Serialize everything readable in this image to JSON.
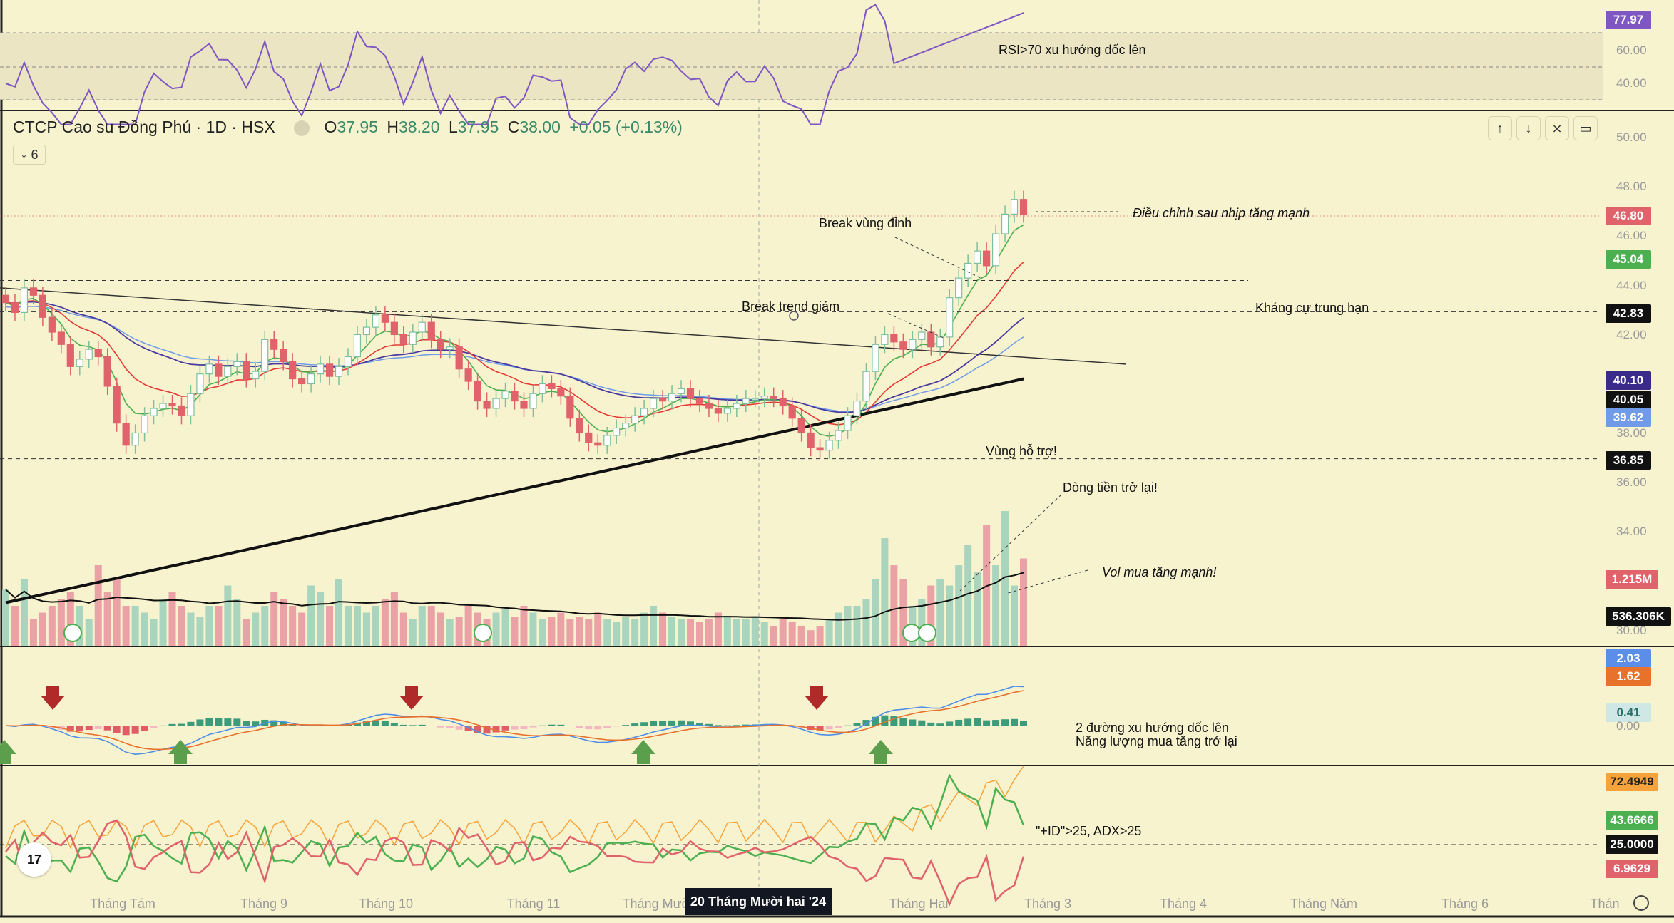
{
  "header": {
    "symbol": "CTCP Cao su Đồng Phú · 1D · HSX",
    "open_label": "O",
    "open": "37.95",
    "high_label": "H",
    "high": "38.20",
    "low_label": "L",
    "low": "37.95",
    "close_label": "C",
    "close": "38.00",
    "change": "+0.05 (+0.13%)",
    "indicator_count": "6"
  },
  "colors": {
    "background": "#f8f3cf",
    "up": "#7dbf9e",
    "down": "#e0626a",
    "rsi": "#7e57c2",
    "ema_fast": "#4caf50",
    "ema_mid": "#e53935",
    "ma_purple": "#4a3aa0",
    "ma_blue": "#6f9be8",
    "ma_black": "#111111"
  },
  "rsi_panel": {
    "levels": [
      "77.97",
      "60.00",
      "40.00"
    ],
    "annotation": "RSI>70 xu hướng dốc lên"
  },
  "price_axis": {
    "ticks": [
      "50.00",
      "48.00",
      "46.00",
      "44.00",
      "42.00",
      "38.00",
      "36.00",
      "34.00",
      "30.00"
    ],
    "tags": [
      {
        "value": "46.80",
        "color": "#e0626a"
      },
      {
        "value": "45.04",
        "color": "#4caf50"
      },
      {
        "value": "42.83",
        "color": "#111111"
      },
      {
        "value": "40.10",
        "color": "#3a2a8a"
      },
      {
        "value": "40.05",
        "color": "#111111"
      },
      {
        "value": "39.62",
        "color": "#6f9be8"
      },
      {
        "value": "36.85",
        "color": "#111111"
      },
      {
        "value": "1.215M",
        "color": "#e0626a"
      },
      {
        "value": "536.306K",
        "color": "#111111"
      }
    ]
  },
  "macd_panel": {
    "tags": [
      "2.03",
      "1.62",
      "0.41"
    ],
    "zero": "0.00",
    "annotation_line1": "2 đường xu hướng dốc lên",
    "annotation_line2": "Năng lượng mua tăng trở lại"
  },
  "dmi_panel": {
    "tags": [
      "72.4949",
      "43.6666",
      "25.0000",
      "6.9629"
    ],
    "annotation": "\"+ID\">25, ADX>25"
  },
  "annotations": {
    "pullback": "Điều chỉnh sau nhịp tăng mạnh",
    "break_peak": "Break vùng đỉnh",
    "break_trend": "Break trend giảm",
    "resistance": "Kháng cự trung hạn",
    "support": "Vùng hỗ trợ!",
    "money_flow": "Dòng tiền trở lại!",
    "vol": "Vol mua tăng mạnh!"
  },
  "x_axis": {
    "labels": [
      "Tháng Tám",
      "Tháng 9",
      "Tháng 10",
      "Tháng 11",
      "Tháng Mười",
      "Tháng Hai",
      "Tháng 3",
      "Tháng 4",
      "Tháng Năm",
      "Tháng 6",
      "Thán"
    ],
    "crosshair_date": "20 Tháng Mười hai '24"
  },
  "logo": "17",
  "chart_data": {
    "type": "candlestick",
    "ylim": [
      30,
      50
    ],
    "price_closes": [
      43.2,
      42.8,
      43.8,
      43.5,
      42.6,
      42.0,
      41.5,
      40.6,
      40.9,
      41.3,
      41.0,
      39.8,
      38.3,
      37.4,
      37.9,
      38.6,
      38.9,
      39.1,
      39.0,
      38.6,
      39.5,
      40.3,
      40.7,
      40.2,
      40.6,
      40.8,
      40.1,
      40.4,
      41.7,
      41.3,
      40.8,
      40.1,
      39.9,
      40.3,
      40.7,
      40.2,
      40.6,
      41.0,
      41.9,
      42.2,
      42.7,
      42.4,
      41.9,
      41.5,
      42.0,
      42.4,
      41.7,
      41.3,
      41.4,
      40.5,
      40.0,
      39.2,
      38.9,
      39.3,
      39.6,
      39.2,
      38.9,
      39.5,
      39.9,
      39.7,
      39.4,
      38.5,
      37.9,
      37.5,
      37.4,
      37.8,
      38.1,
      38.3,
      38.6,
      38.9,
      39.3,
      39.2,
      39.5,
      39.7,
      39.3,
      39.1,
      38.9,
      38.7,
      38.9,
      39.1,
      39.3,
      39.3,
      39.4,
      39.3,
      39.0,
      38.5,
      37.9,
      37.3,
      37.2,
      37.6,
      38.0,
      38.6,
      39.2,
      40.4,
      41.5,
      41.9,
      41.6,
      41.3,
      41.7,
      42.0,
      41.4,
      41.8,
      43.4,
      44.2,
      44.8,
      45.3,
      44.7,
      46.0,
      46.8,
      47.4,
      46.8
    ],
    "volumes_relative": [
      0.42,
      0.3,
      0.5,
      0.2,
      0.25,
      0.3,
      0.35,
      0.4,
      0.3,
      0.2,
      0.6,
      0.4,
      0.5,
      0.3,
      0.3,
      0.25,
      0.2,
      0.35,
      0.4,
      0.3,
      0.25,
      0.22,
      0.3,
      0.3,
      0.45,
      0.35,
      0.2,
      0.25,
      0.3,
      0.4,
      0.35,
      0.3,
      0.25,
      0.45,
      0.4,
      0.3,
      0.5,
      0.3,
      0.3,
      0.25,
      0.3,
      0.35,
      0.4,
      0.25,
      0.2,
      0.3,
      0.3,
      0.25,
      0.2,
      0.22,
      0.3,
      0.25,
      0.2,
      0.25,
      0.28,
      0.22,
      0.3,
      0.25,
      0.2,
      0.22,
      0.25,
      0.2,
      0.22,
      0.2,
      0.25,
      0.2,
      0.18,
      0.22,
      0.2,
      0.25,
      0.3,
      0.25,
      0.22,
      0.2,
      0.2,
      0.18,
      0.2,
      0.25,
      0.22,
      0.2,
      0.2,
      0.22,
      0.18,
      0.15,
      0.2,
      0.18,
      0.15,
      0.12,
      0.15,
      0.2,
      0.25,
      0.3,
      0.3,
      0.35,
      0.5,
      0.8,
      0.6,
      0.5,
      0.3,
      0.35,
      0.45,
      0.5,
      0.45,
      0.6,
      0.75,
      0.55,
      0.9,
      0.6,
      1.0,
      0.45,
      0.65
    ],
    "x_labels": [
      "Tháng Tám",
      "Tháng 9",
      "Tháng 10",
      "Tháng 11",
      "Tháng Mười",
      "Tháng Hai",
      "Tháng 3",
      "Tháng 4",
      "Tháng Năm",
      "Tháng 6"
    ],
    "horizontal_levels": [
      44.1,
      42.83,
      36.85
    ],
    "series": [
      {
        "name": "Close",
        "values_ref": "price_closes"
      }
    ],
    "grid": false,
    "legend": "top-left"
  }
}
